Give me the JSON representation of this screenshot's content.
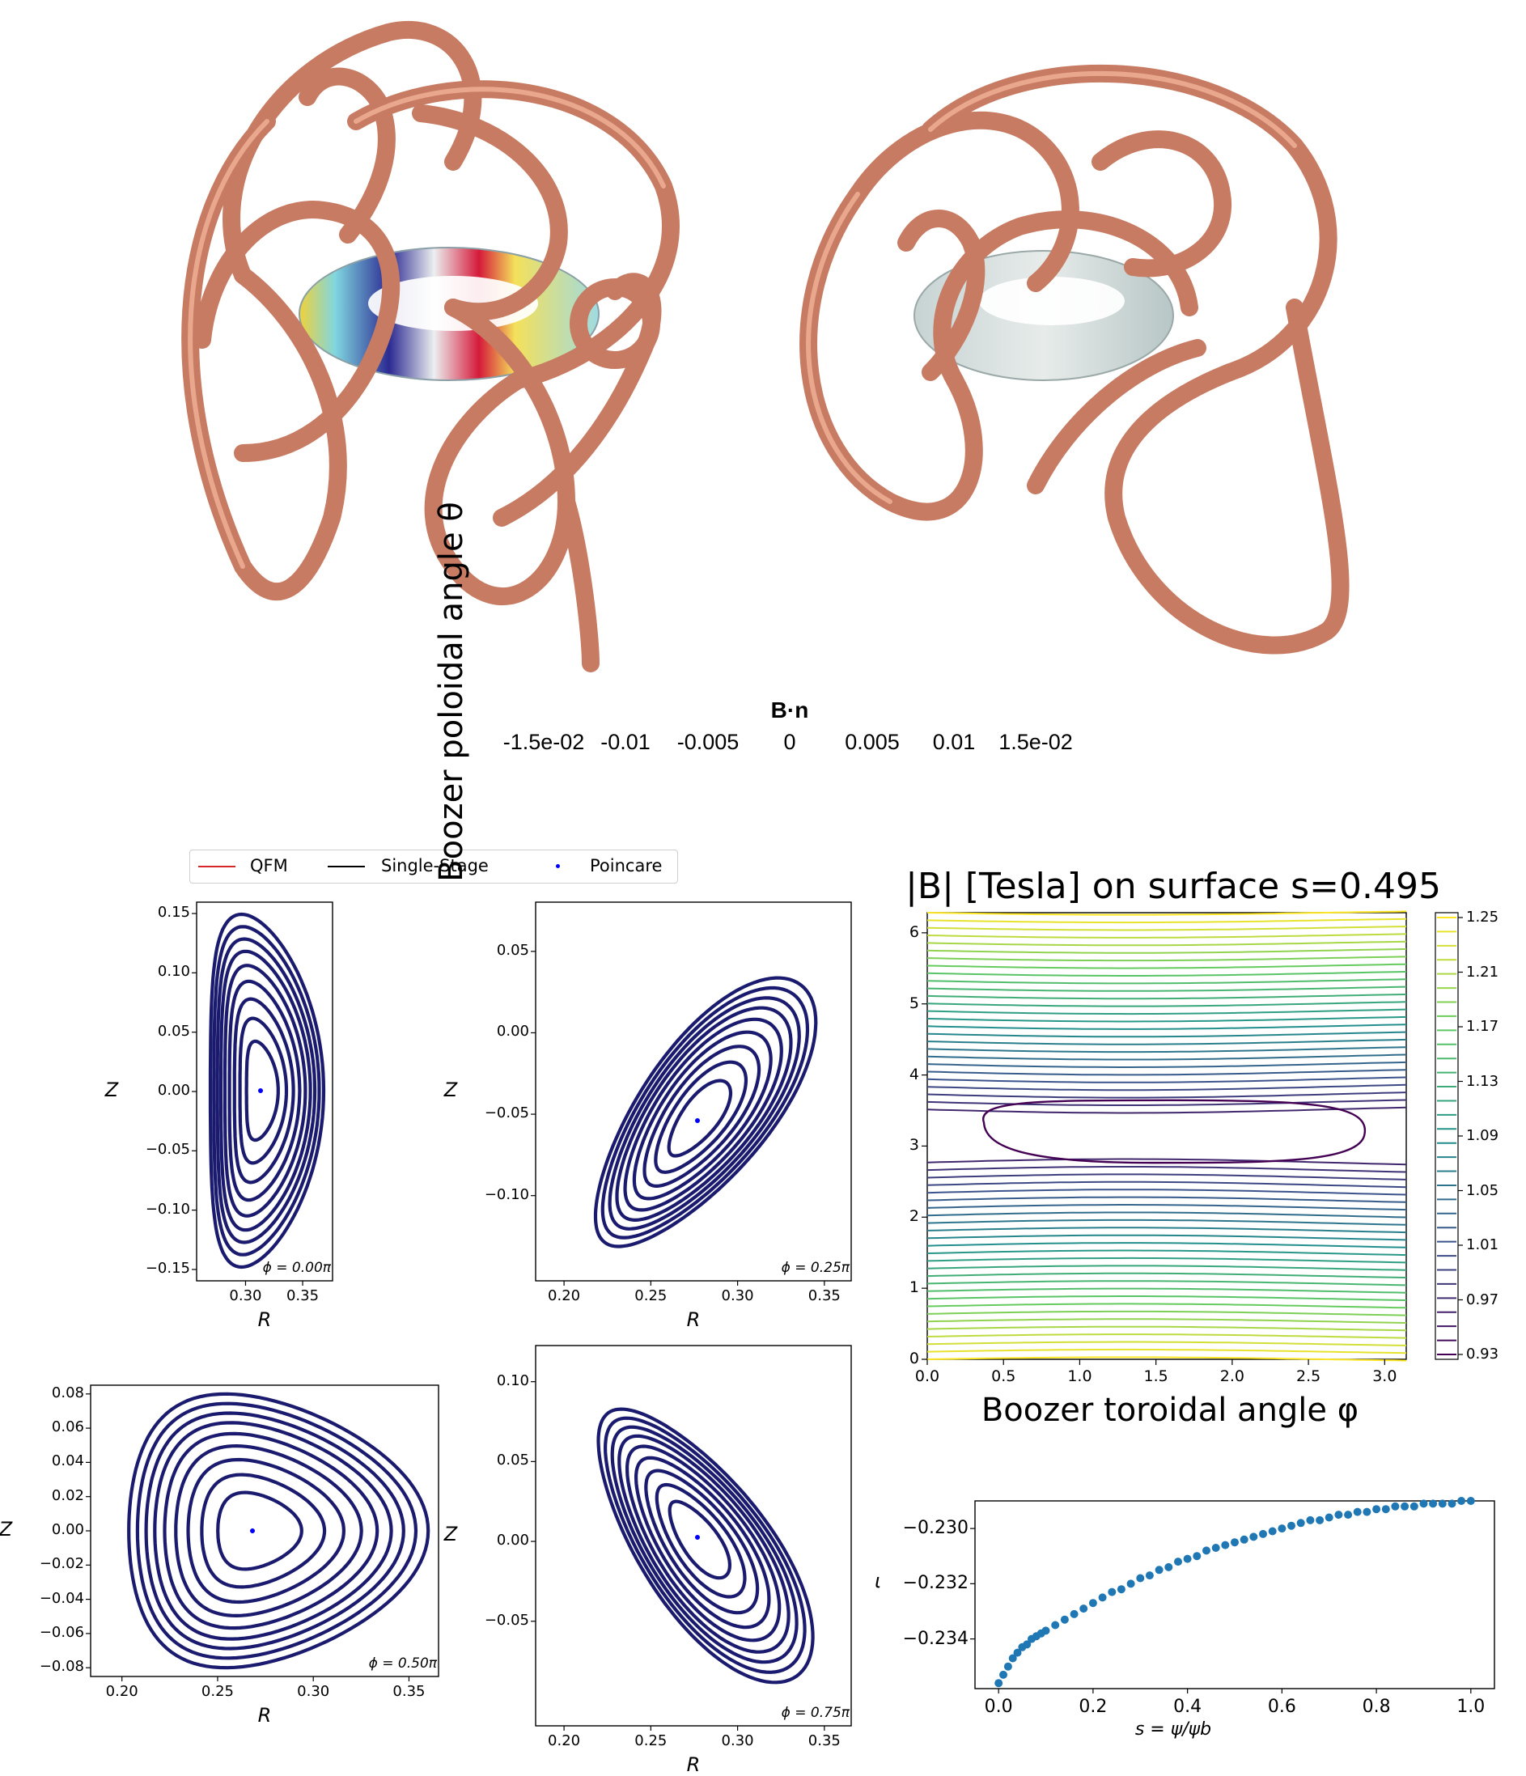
{
  "colorbar_3d": {
    "title": "B·n",
    "ticks": [
      "-1.5e-02",
      "-0.01",
      "-0.005",
      "0",
      "0.005",
      "0.01",
      "1.5e-02"
    ],
    "colors": [
      "#2b2b2b",
      "#2f1a8a",
      "#3b6cf0",
      "#8fe6f0",
      "#f0f0f0",
      "#f2e46a",
      "#f29a26",
      "#d81440",
      "#4a2a30"
    ]
  },
  "coil_color": "#d88a72",
  "legend": {
    "items": [
      {
        "label": "QFM",
        "color": "#d62728",
        "kind": "line"
      },
      {
        "label": "Single-Stage",
        "color": "#000000",
        "kind": "line"
      },
      {
        "label": "Poincare",
        "color": "#0000ff",
        "kind": "dot"
      }
    ]
  },
  "poincare": [
    {
      "phi_label": "ϕ = 0.00π",
      "xlabel": "R",
      "ylabel": "Z",
      "xticks": [
        "0.30",
        "0.35"
      ],
      "yticks": [
        "0.15",
        "0.10",
        "0.05",
        "0.00",
        "−0.05",
        "−0.10",
        "−0.15"
      ]
    },
    {
      "phi_label": "ϕ = 0.25π",
      "xlabel": "R",
      "ylabel": "Z",
      "xticks": [
        "0.20",
        "0.25",
        "0.30",
        "0.35"
      ],
      "yticks": [
        "0.05",
        "0.00",
        "−0.05",
        "−0.10"
      ]
    },
    {
      "phi_label": "ϕ = 0.50π",
      "xlabel": "R",
      "ylabel": "Z",
      "xticks": [
        "0.20",
        "0.25",
        "0.30",
        "0.35"
      ],
      "yticks": [
        "0.08",
        "0.06",
        "0.04",
        "0.02",
        "0.00",
        "−0.02",
        "−0.04",
        "−0.06",
        "−0.08"
      ]
    },
    {
      "phi_label": "ϕ = 0.75π",
      "xlabel": "R",
      "ylabel": "Z",
      "xticks": [
        "0.20",
        "0.25",
        "0.30",
        "0.35"
      ],
      "yticks": [
        "0.10",
        "0.05",
        "0.00",
        "−0.05"
      ]
    }
  ],
  "chart_data": [
    {
      "type": "contour",
      "title": "|B| [Tesla] on surface s=0.495",
      "xlabel": "Boozer toroidal angle φ",
      "ylabel": "Boozer poloidal angle θ",
      "xlim": [
        0,
        3.14159
      ],
      "ylim": [
        0,
        6.28318
      ],
      "xticks": [
        "0.0",
        "0.5",
        "1.0",
        "1.5",
        "2.0",
        "2.5",
        "3.0"
      ],
      "yticks": [
        "0",
        "1",
        "2",
        "3",
        "4",
        "5",
        "6"
      ],
      "colorbar_ticks": [
        "1.25",
        "1.21",
        "1.17",
        "1.13",
        "1.09",
        "1.05",
        "1.01",
        "0.97",
        "0.93"
      ],
      "colorbar_range": [
        0.93,
        1.25
      ],
      "colormap": [
        "#440154",
        "#3b528b",
        "#21918c",
        "#5ec962",
        "#fde725"
      ]
    },
    {
      "type": "scatter",
      "xlabel": "s = ψ/ψb",
      "ylabel": "ι",
      "xlim": [
        -0.05,
        1.05
      ],
      "ylim": [
        -0.2358,
        -0.229
      ],
      "xticks": [
        "0.0",
        "0.2",
        "0.4",
        "0.6",
        "0.8",
        "1.0"
      ],
      "yticks": [
        "−0.230",
        "−0.232",
        "−0.234"
      ],
      "marker_color": "#1f77b4",
      "x": [
        0.0,
        0.01,
        0.02,
        0.03,
        0.04,
        0.05,
        0.06,
        0.07,
        0.08,
        0.09,
        0.1,
        0.12,
        0.14,
        0.16,
        0.18,
        0.2,
        0.22,
        0.24,
        0.26,
        0.28,
        0.3,
        0.32,
        0.34,
        0.36,
        0.38,
        0.4,
        0.42,
        0.44,
        0.46,
        0.48,
        0.5,
        0.52,
        0.54,
        0.56,
        0.58,
        0.6,
        0.62,
        0.64,
        0.66,
        0.68,
        0.7,
        0.72,
        0.74,
        0.76,
        0.78,
        0.8,
        0.82,
        0.84,
        0.86,
        0.88,
        0.9,
        0.92,
        0.94,
        0.96,
        0.98,
        1.0
      ],
      "y": [
        -0.2356,
        -0.2353,
        -0.235,
        -0.2347,
        -0.2345,
        -0.2343,
        -0.2342,
        -0.234,
        -0.2339,
        -0.2338,
        -0.2337,
        -0.2335,
        -0.2333,
        -0.2331,
        -0.2329,
        -0.2327,
        -0.2325,
        -0.2323,
        -0.2322,
        -0.232,
        -0.2318,
        -0.2317,
        -0.2315,
        -0.2314,
        -0.2312,
        -0.2311,
        -0.231,
        -0.2308,
        -0.2307,
        -0.2306,
        -0.2305,
        -0.2304,
        -0.2303,
        -0.2302,
        -0.2301,
        -0.23,
        -0.2299,
        -0.2298,
        -0.2297,
        -0.2297,
        -0.2296,
        -0.2295,
        -0.2295,
        -0.2294,
        -0.2294,
        -0.2293,
        -0.2293,
        -0.2292,
        -0.2292,
        -0.2292,
        -0.2291,
        -0.2291,
        -0.2291,
        -0.2291,
        -0.229,
        -0.229
      ]
    }
  ]
}
